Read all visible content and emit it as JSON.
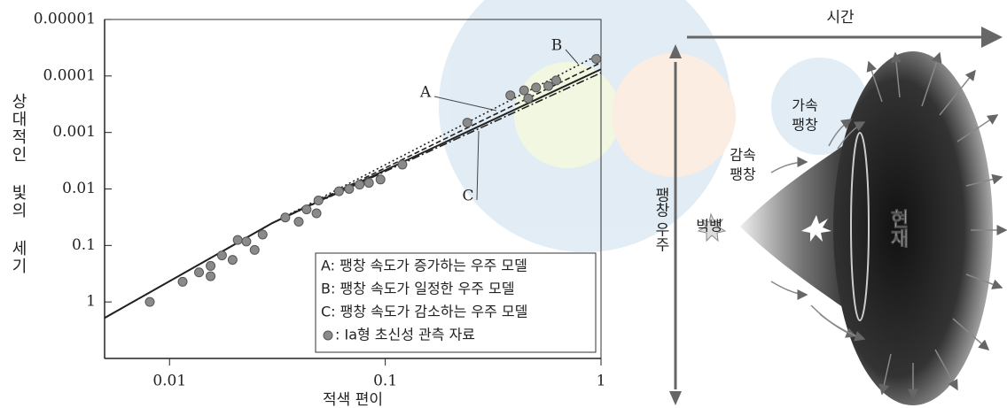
{
  "chart_data": {
    "type": "scatter",
    "x_label": "적색 편이",
    "y_label": "상대적인 빛의 세기",
    "xscale": "log",
    "yscale": "log",
    "xlim": [
      0.005,
      1
    ],
    "ylim": [
      10,
      1e-05
    ],
    "xticks": [
      0.01,
      0.1,
      1
    ],
    "yticks": [
      1e-05,
      0.0001,
      0.001,
      0.01,
      0.1,
      1
    ],
    "legend": "lower right",
    "series": [
      {
        "name": ": Ⅰa형 초신성 관측 자료",
        "color": "#8a8a8a",
        "x": [
          0.0081,
          0.0115,
          0.0137,
          0.0155,
          0.0155,
          0.0175,
          0.0196,
          0.0207,
          0.0227,
          0.0248,
          0.027,
          0.0344,
          0.0397,
          0.0432,
          0.048,
          0.049,
          0.061,
          0.068,
          0.076,
          0.084,
          0.095,
          0.12,
          0.24,
          0.38,
          0.44,
          0.46,
          0.5,
          0.57,
          0.62,
          0.95
        ],
        "values": [
          1,
          0.44,
          0.3,
          0.23,
          0.35,
          0.15,
          0.18,
          0.08,
          0.085,
          0.12,
          0.064,
          0.032,
          0.038,
          0.023,
          0.027,
          0.016,
          0.011,
          0.01,
          0.0084,
          0.0078,
          0.0068,
          0.0037,
          0.00067,
          0.00022,
          0.00018,
          0.00025,
          0.00016,
          0.00015,
          0.00012,
          5e-05
        ]
      }
    ],
    "lines": [
      {
        "style": "solid",
        "x": [
          0.005,
          0.03,
          1
        ],
        "values": [
          1.92,
          0.04,
          7.6e-05
        ]
      },
      {
        "name": "A: 팽창 속도가 증가하는 우주 모델",
        "label": "A",
        "style": "dashed",
        "x": [
          0.005,
          0.03,
          1
        ],
        "values": [
          1.92,
          0.04,
          5.8e-05
        ]
      },
      {
        "name": "B: 팽창 속도가 일정한 우주 모델",
        "label": "B",
        "style": "dotted",
        "x": [
          0.005,
          0.03,
          1
        ],
        "values": [
          1.92,
          0.04,
          4e-05
        ]
      },
      {
        "name": "C: 팽창 속도가 감소하는 우주 모델",
        "label": "C",
        "style": "dashdot",
        "x": [
          0.005,
          0.03,
          1
        ],
        "values": [
          1.92,
          0.04,
          8.8e-05
        ]
      }
    ]
  },
  "diagram": {
    "time_axis": "시간",
    "space_axis": "팽창 우주",
    "big_bang": "빅뱅",
    "deceleration": [
      "감속",
      "팽창"
    ],
    "acceleration": [
      "가속",
      "팽창"
    ],
    "present": "현재"
  }
}
